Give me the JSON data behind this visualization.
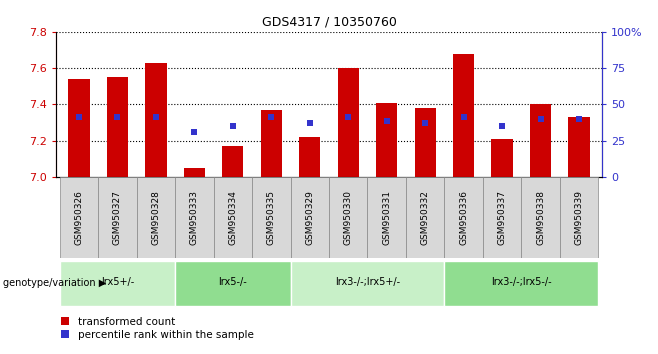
{
  "title": "GDS4317 / 10350760",
  "samples": [
    "GSM950326",
    "GSM950327",
    "GSM950328",
    "GSM950333",
    "GSM950334",
    "GSM950335",
    "GSM950329",
    "GSM950330",
    "GSM950331",
    "GSM950332",
    "GSM950336",
    "GSM950337",
    "GSM950338",
    "GSM950339"
  ],
  "bar_values": [
    7.54,
    7.55,
    7.63,
    7.05,
    7.17,
    7.37,
    7.22,
    7.6,
    7.41,
    7.38,
    7.68,
    7.21,
    7.4,
    7.33
  ],
  "blue_values": [
    7.33,
    7.33,
    7.33,
    7.25,
    7.28,
    7.33,
    7.3,
    7.33,
    7.31,
    7.3,
    7.33,
    7.28,
    7.32,
    7.32
  ],
  "genotype_groups": [
    {
      "label": "lrx5+/-",
      "start": 0,
      "end": 3,
      "color": "#c8f0c8"
    },
    {
      "label": "lrx5-/-",
      "start": 3,
      "end": 6,
      "color": "#90dd90"
    },
    {
      "label": "lrx3-/-;lrx5+/-",
      "start": 6,
      "end": 10,
      "color": "#c8f0c8"
    },
    {
      "label": "lrx3-/-;lrx5-/-",
      "start": 10,
      "end": 14,
      "color": "#90dd90"
    }
  ],
  "ylim": [
    7.0,
    7.8
  ],
  "yticks": [
    7.0,
    7.2,
    7.4,
    7.6,
    7.8
  ],
  "right_yticks": [
    0,
    25,
    50,
    75,
    100
  ],
  "bar_color": "#cc0000",
  "blue_color": "#3333cc",
  "bar_width": 0.55,
  "bar_bottom": 7.0,
  "legend_red": "transformed count",
  "legend_blue": "percentile rank within the sample",
  "genotype_label": "genotype/variation",
  "cell_bg": "#d8d8d8",
  "cell_border": "#888888"
}
